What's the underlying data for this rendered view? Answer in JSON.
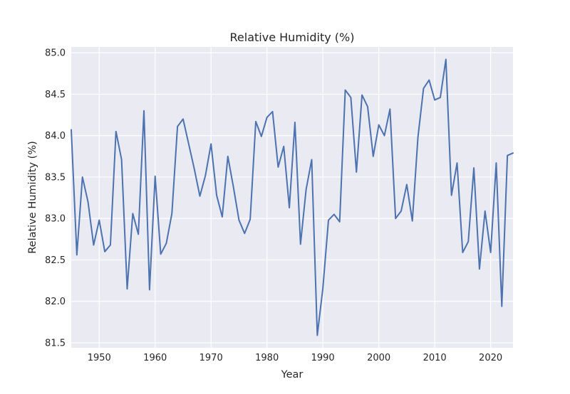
{
  "chart_data": {
    "type": "line",
    "title": "Relative Humidity (%)",
    "xlabel": "Year",
    "ylabel": "Relative Humidity (%)",
    "xlim": [
      1945,
      2024
    ],
    "ylim": [
      81.44,
      85.07
    ],
    "x_ticks": [
      1950,
      1960,
      1970,
      1980,
      1990,
      2000,
      2010,
      2020
    ],
    "y_ticks": [
      81.5,
      82.0,
      82.5,
      83.0,
      83.5,
      84.0,
      84.5,
      85.0
    ],
    "y_tick_labels": [
      "81.5",
      "82.0",
      "82.5",
      "83.0",
      "83.5",
      "84.0",
      "84.5",
      "85.0"
    ],
    "grid": true,
    "line_color": "#4c72b0",
    "background_color": "#eaeaf2",
    "series": [
      {
        "x": [
          1945,
          1946,
          1947,
          1948,
          1949,
          1950,
          1951,
          1952,
          1953,
          1954,
          1955,
          1956,
          1957,
          1958,
          1959,
          1960,
          1961,
          1962,
          1963,
          1964,
          1965,
          1966,
          1967,
          1968,
          1969,
          1970,
          1971,
          1972,
          1973,
          1974,
          1975,
          1976,
          1977,
          1978,
          1979,
          1980,
          1981,
          1982,
          1983,
          1984,
          1985,
          1986,
          1987,
          1988,
          1989,
          1990,
          1991,
          1992,
          1993,
          1994,
          1995,
          1996,
          1997,
          1998,
          1999,
          2000,
          2001,
          2002,
          2003,
          2004,
          2005,
          2006,
          2007,
          2008,
          2009,
          2010,
          2011,
          2012,
          2013,
          2014,
          2015,
          2016,
          2017,
          2018,
          2019,
          2020,
          2021,
          2022,
          2023,
          2024
        ],
        "values": [
          84.07,
          82.56,
          83.5,
          83.2,
          82.68,
          82.98,
          82.6,
          82.68,
          84.05,
          83.71,
          82.15,
          83.06,
          82.81,
          84.3,
          82.14,
          83.51,
          82.57,
          82.7,
          83.06,
          84.11,
          84.2,
          83.9,
          83.6,
          83.27,
          83.52,
          83.9,
          83.28,
          83.02,
          83.75,
          83.38,
          82.98,
          82.82,
          82.99,
          84.17,
          83.99,
          84.22,
          84.29,
          83.62,
          83.87,
          83.13,
          84.16,
          82.69,
          83.35,
          83.71,
          81.59,
          82.16,
          82.98,
          83.05,
          82.96,
          84.55,
          84.46,
          83.56,
          84.49,
          84.35,
          83.75,
          84.13,
          84.0,
          84.32,
          83.0,
          83.09,
          83.41,
          82.97,
          83.98,
          84.57,
          84.67,
          84.43,
          84.46,
          84.92,
          83.28,
          83.67,
          82.59,
          82.72,
          83.61,
          82.39,
          83.09,
          82.59,
          83.67,
          81.94,
          83.76,
          83.79
        ]
      }
    ]
  }
}
